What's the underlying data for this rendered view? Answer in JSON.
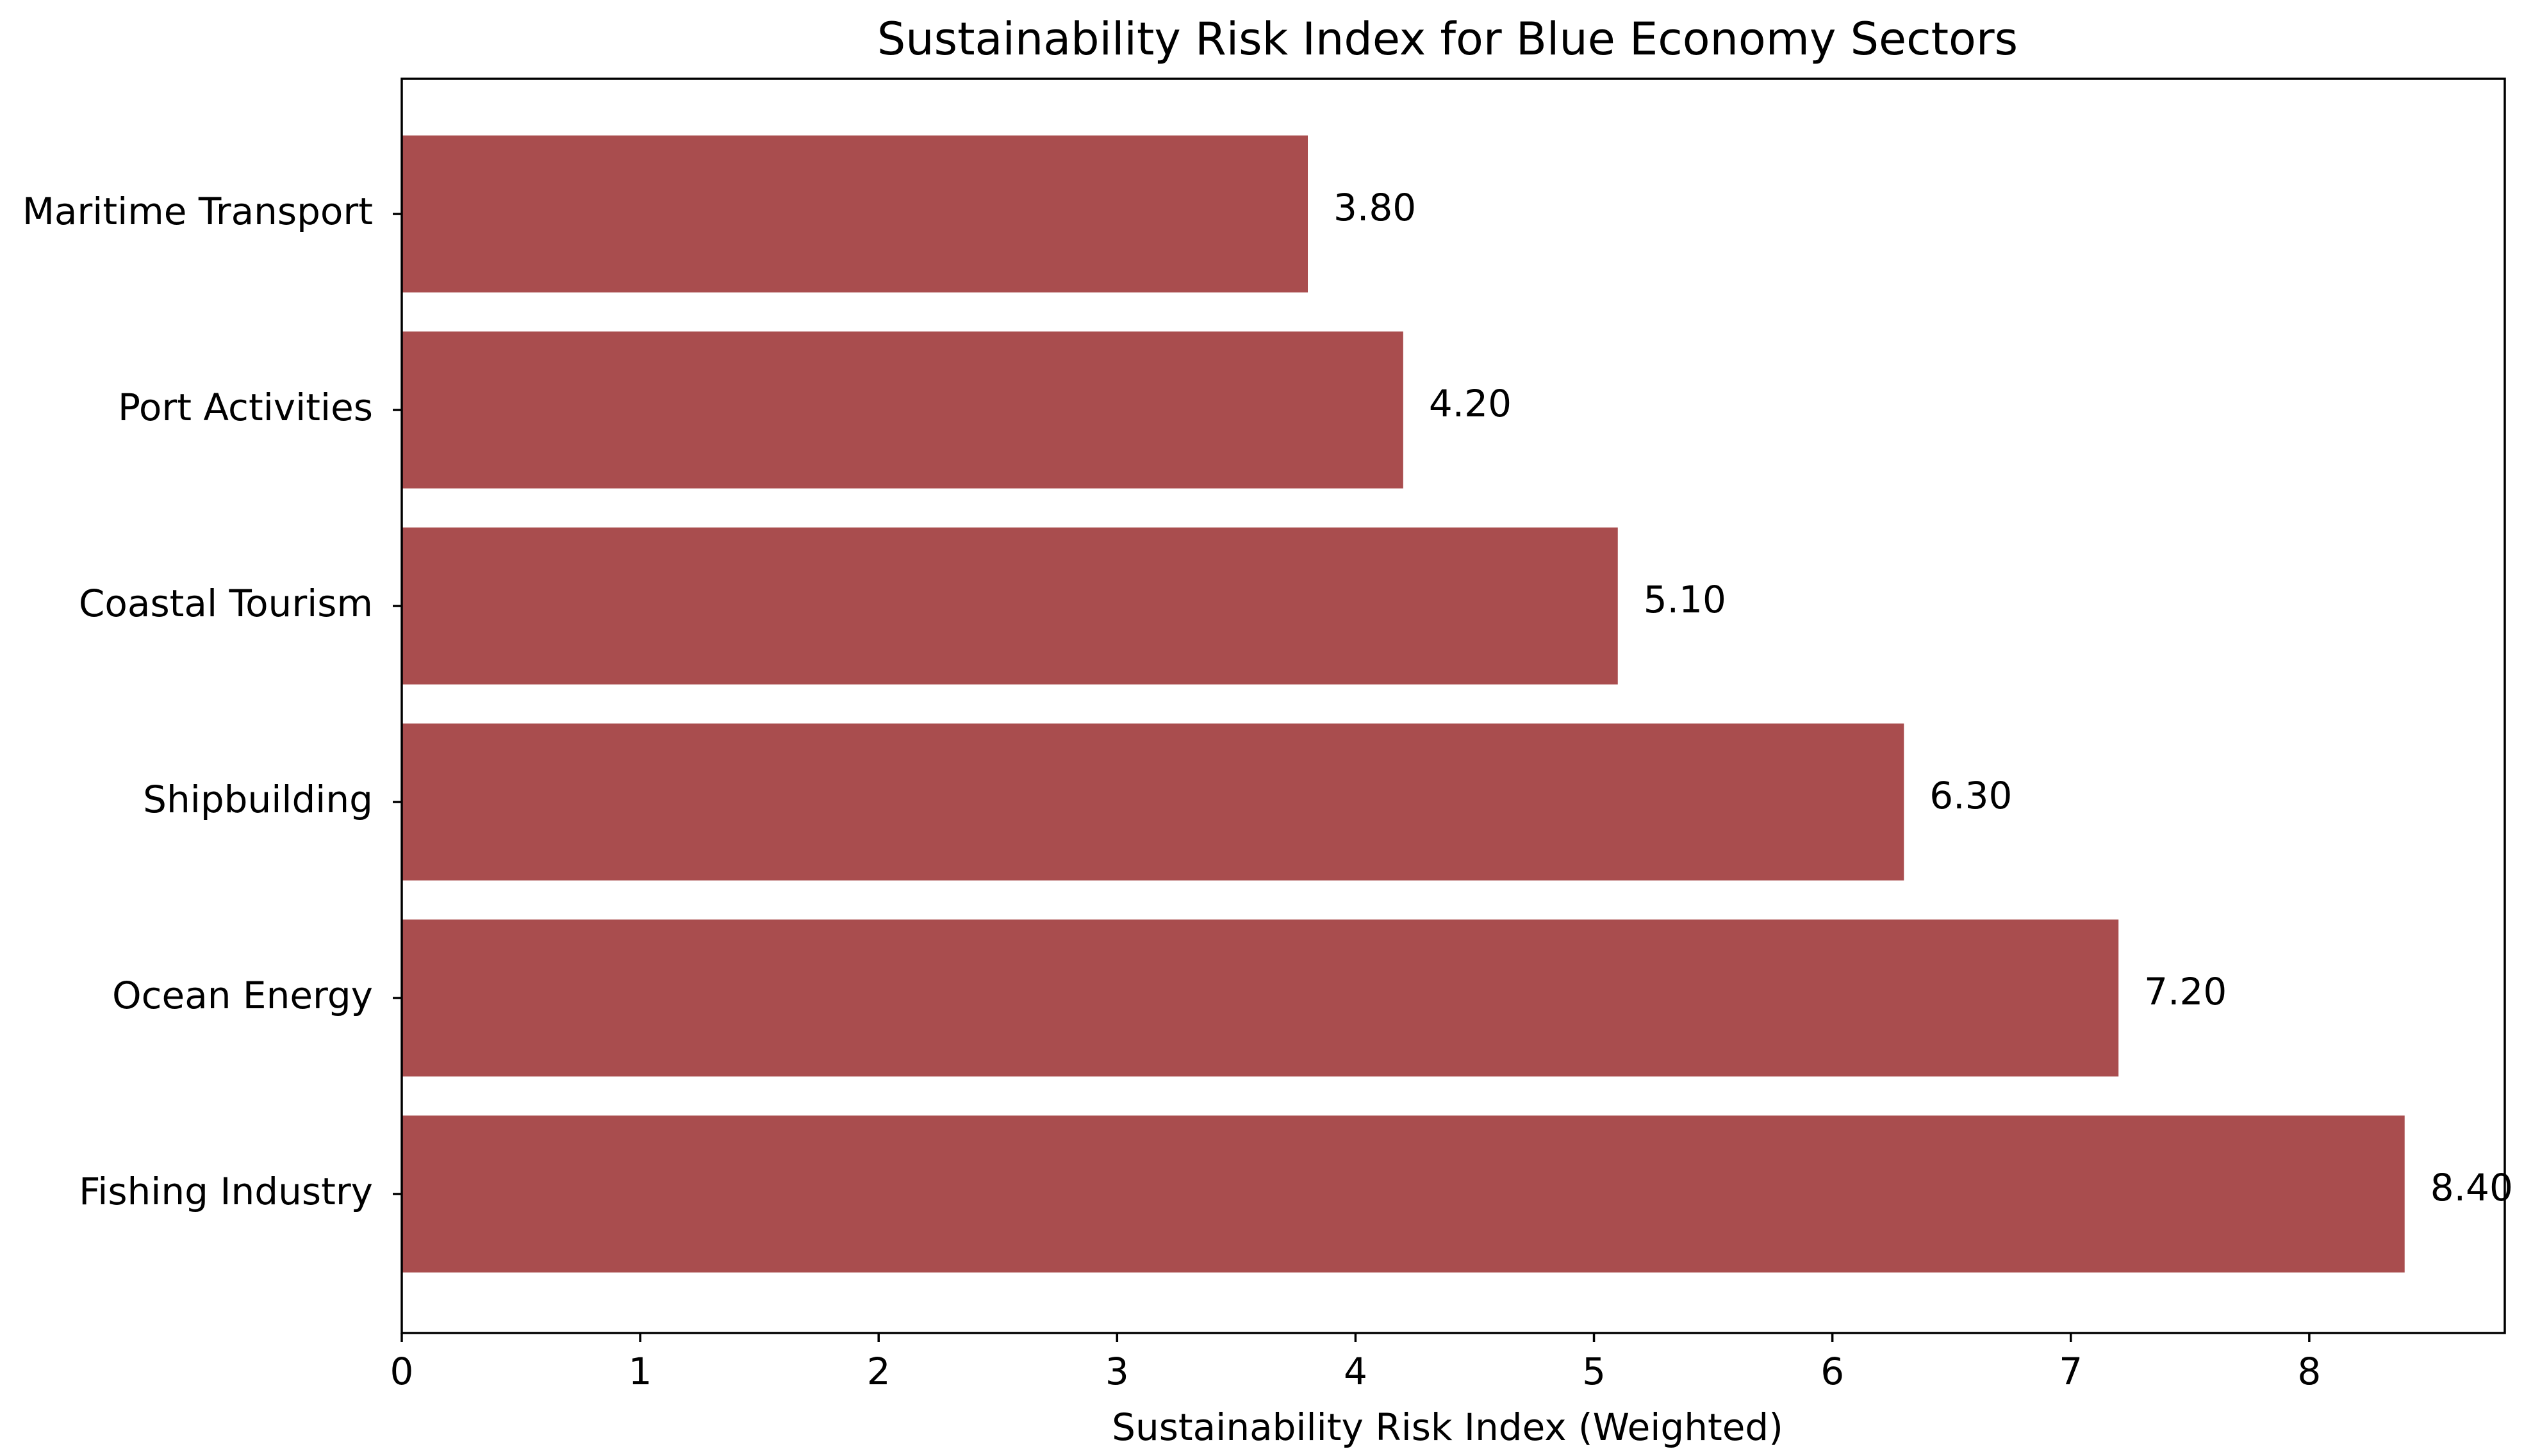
{
  "chart_data": {
    "type": "bar",
    "orientation": "horizontal",
    "title": "Sustainability Risk Index for Blue Economy Sectors",
    "xlabel": "Sustainability Risk Index (Weighted)",
    "ylabel": "",
    "categories": [
      "Maritime Transport",
      "Port Activities",
      "Coastal Tourism",
      "Shipbuilding",
      "Ocean Energy",
      "Fishing Industry"
    ],
    "values": [
      3.8,
      4.2,
      5.1,
      6.3,
      7.2,
      8.4
    ],
    "value_labels": [
      "3.80",
      "4.20",
      "5.10",
      "6.30",
      "7.20",
      "8.40"
    ],
    "xlim": [
      0,
      8.82
    ],
    "xticks": [
      0,
      1,
      2,
      3,
      4,
      5,
      6,
      7,
      8
    ],
    "grid": false,
    "bar_color": "#a94d4e"
  }
}
